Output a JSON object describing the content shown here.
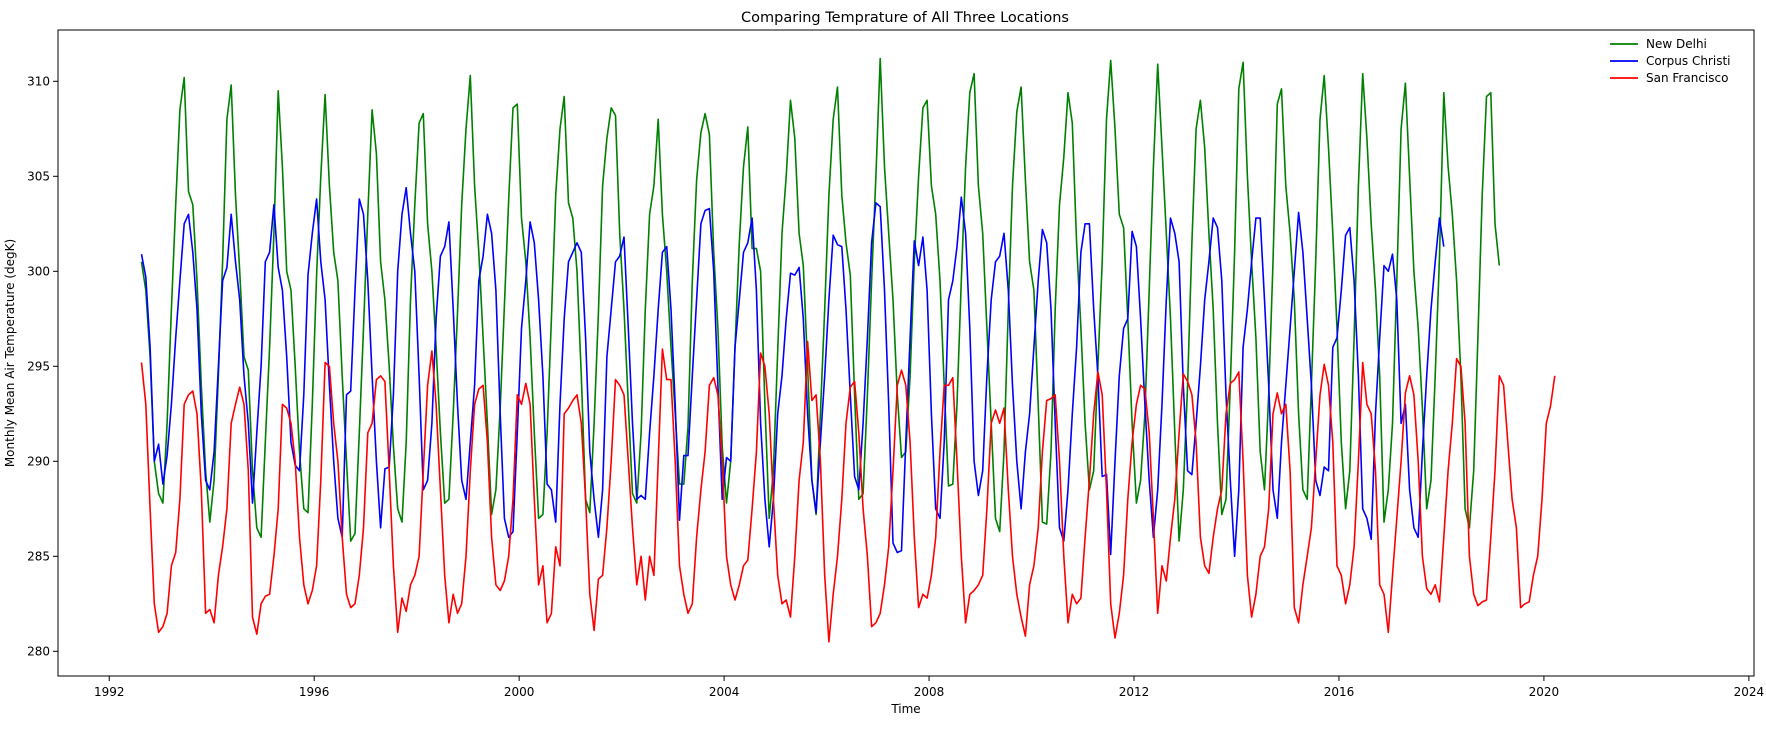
{
  "chart_data": {
    "type": "line",
    "title": "Comparing Temprature of All Three Locations",
    "xlabel": "Time",
    "ylabel": "Monthly Mean Air Temperature (degK)",
    "xlim": [
      1991.0,
      2024.1
    ],
    "ylim": [
      278.7,
      312.7
    ],
    "x_ticks": [
      1992,
      1996,
      2000,
      2004,
      2008,
      2012,
      2016,
      2020,
      2024
    ],
    "y_ticks": [
      280,
      285,
      290,
      295,
      300,
      305,
      310
    ],
    "legend_position": "top-right",
    "x_start": 1992.63,
    "x_step": 0.08333,
    "series": [
      {
        "name": "New Delhi",
        "color": "#008000",
        "values": [
          300.5,
          299.0,
          295.5,
          290.0,
          288.3,
          287.8,
          292.0,
          298.0,
          303.5,
          308.5,
          310.2,
          304.2,
          303.5,
          299.5,
          294.0,
          289.5,
          286.8,
          289.0,
          294.5,
          300.5,
          308.0,
          309.8,
          304.0,
          300.0,
          295.5,
          294.8,
          289.5,
          286.5,
          286.0,
          291.0,
          296.0,
          302.0,
          309.5,
          305.5,
          300.0,
          299.0,
          295.0,
          290.5,
          287.5,
          287.3,
          293.0,
          299.8,
          305.0,
          309.3,
          304.5,
          301.0,
          299.5,
          294.5,
          290.0,
          285.8,
          286.2,
          291.5,
          297.0,
          303.0,
          308.5,
          306.2,
          300.5,
          298.5,
          295.0,
          290.8,
          287.5,
          286.8,
          291.0,
          298.5,
          303.5,
          307.8,
          308.3,
          302.5,
          300.0,
          296.0,
          291.5,
          287.8,
          288.0,
          292.5,
          297.8,
          303.5,
          307.5,
          310.3,
          304.5,
          301.0,
          296.5,
          292.0,
          287.2,
          288.5,
          292.8,
          298.2,
          303.8,
          308.6,
          308.8,
          302.8,
          300.5,
          296.5,
          291.5,
          287.0,
          287.2,
          291.5,
          297.5,
          304.0,
          307.5,
          309.2,
          303.6,
          302.8,
          300.0,
          294.5,
          288.0,
          287.3,
          292.0,
          297.8,
          304.5,
          307.0,
          308.6,
          308.2,
          302.0,
          298.0,
          293.0,
          288.3,
          287.8,
          291.5,
          298.0,
          303.0,
          304.5,
          308.0,
          303.0,
          300.0,
          296.0,
          292.5,
          288.8,
          288.8,
          291.8,
          299.5,
          304.8,
          307.3,
          308.3,
          307.2,
          301.0,
          297.0,
          290.8,
          287.8,
          290.0,
          296.0,
          301.5,
          305.5,
          307.6,
          301.2,
          301.2,
          300.0,
          293.0,
          287.0,
          289.5,
          295.8,
          302.0,
          305.0,
          309.0,
          307.0,
          302.0,
          300.3,
          295.0,
          289.0,
          287.2,
          292.5,
          298.0,
          304.0,
          308.0,
          309.7,
          304.0,
          301.5,
          299.8,
          293.5,
          288.0,
          288.3,
          293.5,
          299.5,
          305.0,
          311.2,
          305.5,
          302.0,
          298.5,
          293.5,
          290.2,
          290.5,
          294.5,
          300.5,
          305.0,
          308.6,
          309.0,
          304.5,
          303.0,
          299.5,
          294.0,
          288.7,
          288.8,
          293.0,
          299.5,
          305.5,
          309.4,
          310.4,
          304.5,
          302.0,
          297.0,
          292.0,
          287.0,
          286.3,
          290.5,
          298.0,
          304.5,
          308.4,
          309.7,
          304.8,
          300.5,
          299.0,
          293.0,
          286.8,
          286.7,
          290.5,
          298.0,
          303.5,
          306.0,
          309.4,
          307.8,
          301.5,
          297.0,
          292.0,
          288.5,
          289.5,
          295.0,
          300.5,
          308.0,
          311.1,
          307.5,
          303.0,
          302.3,
          297.5,
          292.0,
          287.8,
          289.0,
          292.5,
          299.0,
          305.5,
          310.9,
          306.5,
          302.0,
          297.5,
          291.5,
          285.8,
          288.5,
          294.0,
          301.5,
          307.5,
          309.0,
          306.5,
          302.0,
          298.0,
          292.0,
          287.2,
          288.0,
          294.0,
          301.0,
          309.6,
          311.0,
          305.0,
          300.5,
          296.5,
          290.5,
          288.5,
          293.5,
          300.5,
          308.8,
          309.6,
          304.5,
          302.0,
          298.5,
          292.5,
          288.5,
          288.0,
          294.0,
          300.5,
          308.0,
          310.3,
          306.5,
          302.0,
          297.0,
          291.0,
          287.5,
          289.5,
          296.5,
          304.5,
          310.4,
          307.0,
          302.5,
          299.0,
          294.5,
          286.8,
          288.5,
          292.0,
          299.5,
          307.5,
          309.9,
          305.0,
          300.0,
          297.0,
          292.8,
          287.5,
          289.0,
          294.5,
          300.8,
          309.4,
          305.5,
          303.0,
          299.5,
          294.5,
          287.5,
          286.5,
          289.5,
          296.5,
          304.0,
          309.2,
          309.4,
          302.5,
          300.3
        ]
      },
      {
        "name": "Corpus Christi",
        "color": "#0000ff",
        "values": [
          300.9,
          299.7,
          296.0,
          290.0,
          290.9,
          288.8,
          290.3,
          293.0,
          296.5,
          299.5,
          302.5,
          303.0,
          301.0,
          298.0,
          292.5,
          289.0,
          288.5,
          290.5,
          295.0,
          299.5,
          300.2,
          303.0,
          300.5,
          298.5,
          294.5,
          292.0,
          287.8,
          291.5,
          295.0,
          300.5,
          301.0,
          303.5,
          300.2,
          299.0,
          295.5,
          291.0,
          289.8,
          289.5,
          293.5,
          299.8,
          302.0,
          303.8,
          300.5,
          298.5,
          294.0,
          290.0,
          287.0,
          286.0,
          293.5,
          293.7,
          299.0,
          303.8,
          303.0,
          299.5,
          294.5,
          290.0,
          286.5,
          289.6,
          289.7,
          293.5,
          300.0,
          303.0,
          304.4,
          302.0,
          300.0,
          294.5,
          288.5,
          289.0,
          292.0,
          297.5,
          300.8,
          301.3,
          302.6,
          298.0,
          293.0,
          289.0,
          288.0,
          291.0,
          294.0,
          299.5,
          300.8,
          303.0,
          302.0,
          299.0,
          292.5,
          287.0,
          286.0,
          286.3,
          291.5,
          297.0,
          299.5,
          302.6,
          301.5,
          298.5,
          294.5,
          288.8,
          288.5,
          286.8,
          293.0,
          297.5,
          300.5,
          301.0,
          301.5,
          301.0,
          296.5,
          290.5,
          288.0,
          286.0,
          288.5,
          295.5,
          298.0,
          300.5,
          300.8,
          301.8,
          297.0,
          292.0,
          288.0,
          288.2,
          288.0,
          291.5,
          294.5,
          298.0,
          301.0,
          301.3,
          298.0,
          293.0,
          286.9,
          290.3,
          290.3,
          294.5,
          298.5,
          302.5,
          303.2,
          303.3,
          300.0,
          294.0,
          288.0,
          290.2,
          290.0,
          296.0,
          298.5,
          301.0,
          301.5,
          302.8,
          299.0,
          292.0,
          288.0,
          285.5,
          288.0,
          292.5,
          294.5,
          297.5,
          299.9,
          299.8,
          300.2,
          297.5,
          292.5,
          289.0,
          287.3,
          291.0,
          294.5,
          298.5,
          301.9,
          301.4,
          301.3,
          298.0,
          293.5,
          289.2,
          288.5,
          292.0,
          296.5,
          301.5,
          303.6,
          303.4,
          299.0,
          293.0,
          285.7,
          285.2,
          285.3,
          291.0,
          296.5,
          301.6,
          300.3,
          301.8,
          299.0,
          292.5,
          287.5,
          287.0,
          291.0,
          298.5,
          299.5,
          301.3,
          303.9,
          302.0,
          297.0,
          290.0,
          288.2,
          289.5,
          294.5,
          298.5,
          300.5,
          300.8,
          302.0,
          299.0,
          294.0,
          290.0,
          287.5,
          290.5,
          292.5,
          296.0,
          299.5,
          302.2,
          301.5,
          298.0,
          292.0,
          286.5,
          285.8,
          288.5,
          292.5,
          296.0,
          301.0,
          302.5,
          302.5,
          298.0,
          294.5,
          289.2,
          289.3,
          285.1,
          290.0,
          294.5,
          297.0,
          297.5,
          302.1,
          301.3,
          297.5,
          293.0,
          289.0,
          286.0,
          288.5,
          293.0,
          298.5,
          302.8,
          302.0,
          300.5,
          294.0,
          289.5,
          289.3,
          292.0,
          295.0,
          298.5,
          300.5,
          302.8,
          302.3,
          299.5,
          293.5,
          289.0,
          285.0,
          288.5,
          296.0,
          298.0,
          300.5,
          302.8,
          302.8,
          298.5,
          294.0,
          288.5,
          287.0,
          291.0,
          294.0,
          297.0,
          300.0,
          303.1,
          301.0,
          297.5,
          294.0,
          289.0,
          288.2,
          289.7,
          289.5,
          296.0,
          296.5,
          299.0,
          301.9,
          302.3,
          299.5,
          294.5,
          287.5,
          287.0,
          285.9,
          292.5,
          296.5,
          300.3,
          300.0,
          300.9,
          298.5,
          292.0,
          293.0,
          288.5,
          286.5,
          286.0,
          290.5,
          294.5,
          298.0,
          300.5,
          302.8,
          301.3
        ]
      },
      {
        "name": "San Francisco",
        "color": "#ff0000",
        "values": [
          295.2,
          293.0,
          287.5,
          282.5,
          281.0,
          281.3,
          282.0,
          284.5,
          285.2,
          288.0,
          293.0,
          293.5,
          293.7,
          292.5,
          288.5,
          282.0,
          282.2,
          281.5,
          284.0,
          285.5,
          287.5,
          292.0,
          293.0,
          293.9,
          293.0,
          289.5,
          281.8,
          280.9,
          282.5,
          282.9,
          283.0,
          285.0,
          287.5,
          293.0,
          292.8,
          292.0,
          290.0,
          286.0,
          283.5,
          282.5,
          283.2,
          284.5,
          289.0,
          295.2,
          295.0,
          292.0,
          290.0,
          286.0,
          283.0,
          282.3,
          282.5,
          284.0,
          286.5,
          291.5,
          292.0,
          294.3,
          294.5,
          294.2,
          289.5,
          284.5,
          281.0,
          282.8,
          282.1,
          283.5,
          284.0,
          285.0,
          289.5,
          294.0,
          295.8,
          293.0,
          288.5,
          284.0,
          281.5,
          283.0,
          282.0,
          282.5,
          285.0,
          289.5,
          293.0,
          293.8,
          294.0,
          291.0,
          286.0,
          283.5,
          283.2,
          283.7,
          285.0,
          288.0,
          293.5,
          293.0,
          294.1,
          293.0,
          288.0,
          283.5,
          284.5,
          281.5,
          282.0,
          285.5,
          284.5,
          292.5,
          292.8,
          293.2,
          293.5,
          292.0,
          288.0,
          283.0,
          281.1,
          283.8,
          284.0,
          286.5,
          290.0,
          294.3,
          294.0,
          293.5,
          290.0,
          286.5,
          283.5,
          285.0,
          282.7,
          285.0,
          284.0,
          290.0,
          295.9,
          294.3,
          294.3,
          290.0,
          284.5,
          283.0,
          282.0,
          282.5,
          286.0,
          288.5,
          290.5,
          294.0,
          294.4,
          293.5,
          290.0,
          285.0,
          283.5,
          282.7,
          283.5,
          284.5,
          284.8,
          287.5,
          290.5,
          295.7,
          295.0,
          292.5,
          288.0,
          284.0,
          282.5,
          282.7,
          281.8,
          285.0,
          289.0,
          291.0,
          296.3,
          293.2,
          293.5,
          290.0,
          284.0,
          280.5,
          283.0,
          285.0,
          288.0,
          292.0,
          293.9,
          294.2,
          291.5,
          287.5,
          285.0,
          281.3,
          281.5,
          282.0,
          283.5,
          285.5,
          289.5,
          294.0,
          294.8,
          294.0,
          291.0,
          286.0,
          282.3,
          283.0,
          282.8,
          284.0,
          286.0,
          290.5,
          294.0,
          294.0,
          294.4,
          290.0,
          285.0,
          281.5,
          283.0,
          283.2,
          283.5,
          284.0,
          287.5,
          292.0,
          292.7,
          292.0,
          292.8,
          288.5,
          285.0,
          283.0,
          281.8,
          280.8,
          283.5,
          284.5,
          286.5,
          290.5,
          293.2,
          293.3,
          293.5,
          290.0,
          285.0,
          281.5,
          283.0,
          282.5,
          282.8,
          286.0,
          289.0,
          292.5,
          294.7,
          293.5,
          288.5,
          282.5,
          280.7,
          282.0,
          284.0,
          288.0,
          291.0,
          293.0,
          294.0,
          293.8,
          291.5,
          287.0,
          282.0,
          284.5,
          283.7,
          286.0,
          288.0,
          291.5,
          294.6,
          294.2,
          293.5,
          291.0,
          286.0,
          284.5,
          284.1,
          286.0,
          287.5,
          288.5,
          292.5,
          294.1,
          294.3,
          294.7,
          290.0,
          284.0,
          281.8,
          283.0,
          285.0,
          285.5,
          287.5,
          292.5,
          293.6,
          292.5,
          293.0,
          289.5,
          282.3,
          281.5,
          283.5,
          285.0,
          286.5,
          290.0,
          293.5,
          295.1,
          294.0,
          291.0,
          284.5,
          284.0,
          282.5,
          283.5,
          285.5,
          290.0,
          295.2,
          293.0,
          292.5,
          289.5,
          283.5,
          283.0,
          281.0,
          284.0,
          287.0,
          290.0,
          293.6,
          294.5,
          293.5,
          290.0,
          285.0,
          283.3,
          283.0,
          283.5,
          282.6,
          286.0,
          289.5,
          292.0,
          295.4,
          295.0,
          292.0,
          285.0,
          283.0,
          282.4,
          282.6,
          282.7,
          286.0,
          289.5,
          294.5,
          294.0,
          291.0,
          288.0,
          286.5,
          282.3,
          282.5,
          282.6,
          284.0,
          285.0,
          288.0,
          292.0,
          292.9,
          294.5
        ]
      }
    ]
  }
}
